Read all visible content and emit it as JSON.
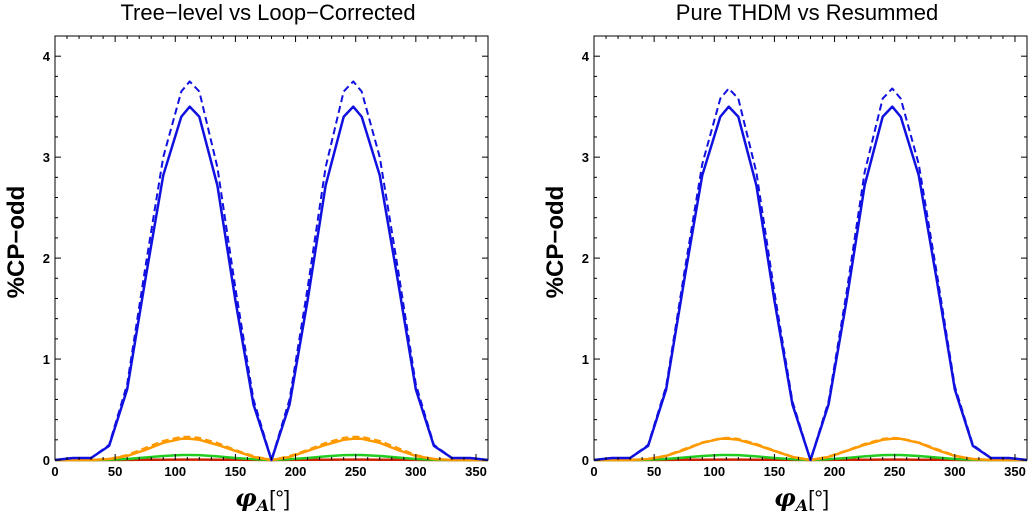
{
  "chart_data": [
    {
      "type": "line",
      "title": "Tree−level vs Loop−Corrected",
      "xlabel": "φ",
      "xlabel_subscript": "A",
      "xlabel_unit": "[°]",
      "ylabel": "%CP−odd",
      "xlim": [
        0,
        360
      ],
      "ylim": [
        0,
        4.2
      ],
      "xticks": [
        "0",
        "50",
        "100",
        "150",
        "200",
        "250",
        "300",
        "350"
      ],
      "yticks": [
        "0",
        "1",
        "2",
        "3",
        "4"
      ],
      "grid": false,
      "legend": "none",
      "x": [
        0,
        15,
        30,
        45,
        60,
        75,
        90,
        105,
        112,
        120,
        135,
        150,
        165,
        180,
        195,
        210,
        225,
        240,
        248,
        255,
        270,
        285,
        300,
        315,
        330,
        345,
        360
      ],
      "series": [
        {
          "color": "#1010e0",
          "dash": true,
          "values": [
            0,
            0.02,
            0.02,
            0.15,
            0.75,
            1.9,
            3.0,
            3.65,
            3.75,
            3.65,
            2.9,
            1.7,
            0.6,
            0.0,
            0.6,
            1.7,
            2.9,
            3.65,
            3.75,
            3.65,
            3.0,
            1.9,
            0.75,
            0.15,
            0.02,
            0.02,
            0
          ]
        },
        {
          "color": "#1010e0",
          "dash": false,
          "values": [
            0,
            0.02,
            0.02,
            0.14,
            0.7,
            1.78,
            2.82,
            3.4,
            3.5,
            3.4,
            2.72,
            1.58,
            0.55,
            0.0,
            0.55,
            1.58,
            2.72,
            3.4,
            3.5,
            3.4,
            2.82,
            1.78,
            0.7,
            0.14,
            0.02,
            0.02,
            0
          ]
        },
        {
          "color": "#ff9900",
          "dash": true,
          "values": [
            0,
            0,
            0,
            0.01,
            0.05,
            0.12,
            0.19,
            0.23,
            0.23,
            0.22,
            0.17,
            0.1,
            0.04,
            0.0,
            0.04,
            0.1,
            0.17,
            0.22,
            0.23,
            0.23,
            0.19,
            0.12,
            0.05,
            0.01,
            0,
            0,
            0
          ]
        },
        {
          "color": "#ff9900",
          "dash": false,
          "values": [
            0,
            0,
            0,
            0.01,
            0.04,
            0.1,
            0.17,
            0.21,
            0.21,
            0.2,
            0.15,
            0.09,
            0.03,
            0.0,
            0.03,
            0.09,
            0.15,
            0.2,
            0.21,
            0.21,
            0.17,
            0.1,
            0.04,
            0.01,
            0,
            0,
            0
          ]
        },
        {
          "color": "#22cc22",
          "dash": false,
          "values": [
            0,
            0,
            0,
            0.002,
            0.01,
            0.025,
            0.04,
            0.05,
            0.05,
            0.048,
            0.036,
            0.02,
            0.008,
            0.0,
            0.008,
            0.02,
            0.036,
            0.048,
            0.05,
            0.05,
            0.04,
            0.025,
            0.01,
            0.002,
            0,
            0,
            0
          ]
        },
        {
          "color": "#cc2200",
          "dash": false,
          "values": [
            0,
            0,
            0,
            0,
            0.001,
            0.002,
            0.003,
            0.004,
            0.004,
            0.004,
            0.003,
            0.002,
            0.001,
            0.0,
            0.001,
            0.002,
            0.003,
            0.004,
            0.004,
            0.004,
            0.003,
            0.002,
            0.001,
            0,
            0,
            0,
            0
          ]
        }
      ]
    },
    {
      "type": "line",
      "title": "Pure THDM vs Resummed",
      "xlabel": "φ",
      "xlabel_subscript": "A",
      "xlabel_unit": "[°]",
      "ylabel": "%CP−odd",
      "xlim": [
        0,
        360
      ],
      "ylim": [
        0,
        4.2
      ],
      "xticks": [
        "0",
        "50",
        "100",
        "150",
        "200",
        "250",
        "300",
        "350"
      ],
      "yticks": [
        "0",
        "1",
        "2",
        "3",
        "4"
      ],
      "grid": false,
      "legend": "none",
      "x": [
        0,
        15,
        30,
        45,
        60,
        75,
        90,
        105,
        112,
        120,
        135,
        150,
        165,
        180,
        195,
        210,
        225,
        240,
        248,
        255,
        270,
        285,
        300,
        315,
        330,
        345,
        360
      ],
      "series": [
        {
          "color": "#1010e0",
          "dash": true,
          "values": [
            0,
            0.02,
            0.02,
            0.15,
            0.73,
            1.85,
            2.93,
            3.58,
            3.68,
            3.58,
            2.85,
            1.66,
            0.58,
            0.0,
            0.58,
            1.66,
            2.85,
            3.58,
            3.68,
            3.58,
            2.93,
            1.85,
            0.73,
            0.15,
            0.02,
            0.02,
            0
          ]
        },
        {
          "color": "#1010e0",
          "dash": false,
          "values": [
            0,
            0.02,
            0.02,
            0.14,
            0.7,
            1.78,
            2.82,
            3.4,
            3.5,
            3.4,
            2.72,
            1.58,
            0.55,
            0.0,
            0.55,
            1.58,
            2.72,
            3.4,
            3.5,
            3.4,
            2.82,
            1.78,
            0.7,
            0.14,
            0.02,
            0.02,
            0
          ]
        },
        {
          "color": "#ff9900",
          "dash": true,
          "values": [
            0,
            0,
            0,
            0.01,
            0.045,
            0.11,
            0.175,
            0.215,
            0.22,
            0.21,
            0.16,
            0.095,
            0.035,
            0.0,
            0.035,
            0.095,
            0.16,
            0.21,
            0.22,
            0.215,
            0.175,
            0.11,
            0.045,
            0.01,
            0,
            0,
            0
          ]
        },
        {
          "color": "#ff9900",
          "dash": false,
          "values": [
            0,
            0,
            0,
            0.01,
            0.04,
            0.1,
            0.17,
            0.21,
            0.21,
            0.2,
            0.15,
            0.09,
            0.03,
            0.0,
            0.03,
            0.09,
            0.15,
            0.2,
            0.21,
            0.21,
            0.17,
            0.1,
            0.04,
            0.01,
            0,
            0,
            0
          ]
        },
        {
          "color": "#22cc22",
          "dash": false,
          "values": [
            0,
            0,
            0,
            0.002,
            0.01,
            0.025,
            0.04,
            0.05,
            0.05,
            0.048,
            0.036,
            0.02,
            0.008,
            0.0,
            0.008,
            0.02,
            0.036,
            0.048,
            0.05,
            0.05,
            0.04,
            0.025,
            0.01,
            0.002,
            0,
            0,
            0
          ]
        },
        {
          "color": "#cc2200",
          "dash": false,
          "values": [
            0,
            0,
            0,
            0,
            0.001,
            0.002,
            0.003,
            0.004,
            0.004,
            0.004,
            0.003,
            0.002,
            0.001,
            0.0,
            0.001,
            0.002,
            0.003,
            0.004,
            0.004,
            0.004,
            0.003,
            0.002,
            0.001,
            0,
            0,
            0,
            0
          ]
        }
      ]
    }
  ]
}
